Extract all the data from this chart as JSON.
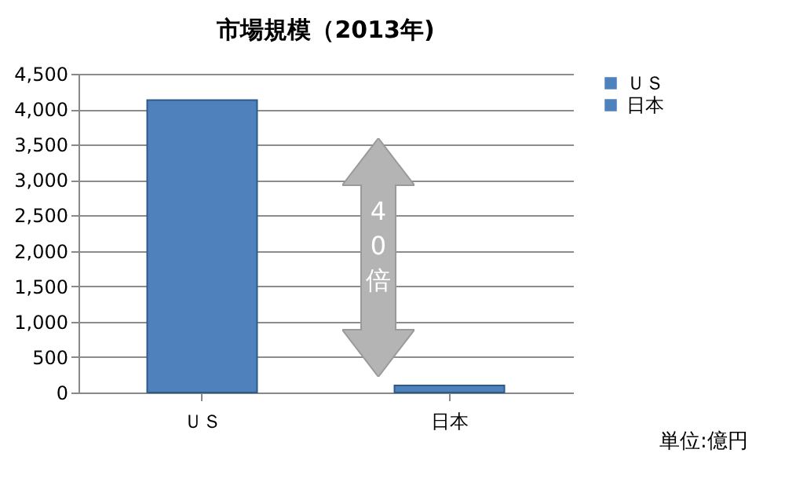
{
  "chart_data": {
    "type": "bar",
    "title": "市場規模（2013年)",
    "categories": [
      "ＵＳ",
      "日本"
    ],
    "series": [
      {
        "name": "ＵＳ",
        "color": "#4f81bd",
        "values": [
          4130,
          null
        ]
      },
      {
        "name": "日本",
        "color": "#4f81bd",
        "values": [
          null,
          100
        ]
      }
    ],
    "ylim": [
      0,
      4500
    ],
    "yticks": [
      0,
      500,
      {
        "value": 1000,
        "label": "1,000"
      },
      {
        "value": 1500,
        "label": "1,500"
      },
      {
        "value": 2000,
        "label": "2,000"
      },
      {
        "value": 2500,
        "label": "2,500"
      },
      {
        "value": 3000,
        "label": "3,000"
      },
      {
        "value": 3500,
        "label": "3,500"
      },
      {
        "value": 4000,
        "label": "4,000"
      },
      {
        "value": 4500,
        "label": "4,500"
      }
    ],
    "grid": "y",
    "legend": "right",
    "annotations": [
      "40倍",
      "単位:億円"
    ]
  }
}
